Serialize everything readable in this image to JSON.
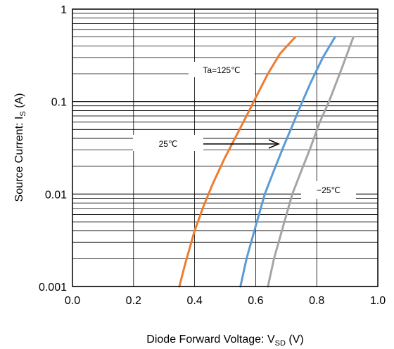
{
  "chart_data": {
    "type": "line",
    "x_scale": "linear",
    "y_scale": "log",
    "xlim": [
      0.0,
      1.0
    ],
    "ylim": [
      0.001,
      1
    ],
    "x_ticks": [
      "0.0",
      "0.2",
      "0.4",
      "0.6",
      "0.8",
      "1.0"
    ],
    "y_ticks": [
      "0.001",
      "0.01",
      "0.1",
      "1"
    ],
    "xlabel": {
      "main": "Diode Forward Voltage: V",
      "sub": "SD",
      "unit": " (V)"
    },
    "ylabel": {
      "main": "Source Current: I",
      "sub": "S",
      "unit": " (A)"
    },
    "grid": true,
    "series": [
      {
        "name": "Ta=125℃",
        "color": "#ED7D31",
        "x": [
          0.35,
          0.37,
          0.4,
          0.43,
          0.46,
          0.5,
          0.54,
          0.57,
          0.6,
          0.64,
          0.68,
          0.73
        ],
        "y": [
          0.001,
          0.0018,
          0.004,
          0.0075,
          0.013,
          0.025,
          0.045,
          0.07,
          0.11,
          0.2,
          0.33,
          0.5
        ]
      },
      {
        "name": "25℃",
        "color": "#5B9BD5",
        "x": [
          0.55,
          0.57,
          0.6,
          0.63,
          0.66,
          0.69,
          0.72,
          0.75,
          0.78,
          0.82,
          0.86
        ],
        "y": [
          0.001,
          0.002,
          0.0045,
          0.01,
          0.018,
          0.032,
          0.055,
          0.095,
          0.16,
          0.3,
          0.5
        ]
      },
      {
        "name": "−25℃",
        "color": "#A5A5A5",
        "x": [
          0.64,
          0.66,
          0.69,
          0.72,
          0.75,
          0.78,
          0.81,
          0.84,
          0.88,
          0.92
        ],
        "y": [
          0.001,
          0.002,
          0.0045,
          0.01,
          0.018,
          0.032,
          0.06,
          0.1,
          0.22,
          0.5
        ]
      }
    ],
    "annotations": [
      {
        "text": "Ta=125℃"
      },
      {
        "text": "25℃"
      },
      {
        "text": "−25℃"
      }
    ]
  }
}
